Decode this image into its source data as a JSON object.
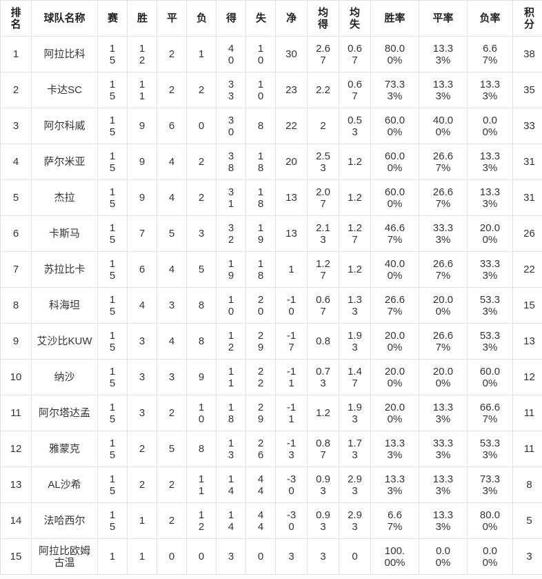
{
  "table": {
    "colors": {
      "background": "#ffffff",
      "border": "#e2e2e2",
      "text": "#333333",
      "header_text": "#222222"
    },
    "columns": [
      {
        "key": "rank",
        "label": "排名"
      },
      {
        "key": "team",
        "label": "球队名称"
      },
      {
        "key": "played",
        "label": "赛"
      },
      {
        "key": "wins",
        "label": "胜"
      },
      {
        "key": "draws",
        "label": "平"
      },
      {
        "key": "losses",
        "label": "负"
      },
      {
        "key": "goals_for",
        "label": "得"
      },
      {
        "key": "goals_against",
        "label": "失"
      },
      {
        "key": "goal_diff",
        "label": "净"
      },
      {
        "key": "avg_goals_for",
        "label": "均得"
      },
      {
        "key": "avg_goals_against",
        "label": "均失"
      },
      {
        "key": "win_rate",
        "label": "胜率"
      },
      {
        "key": "draw_rate",
        "label": "平率"
      },
      {
        "key": "loss_rate",
        "label": "负率"
      },
      {
        "key": "points",
        "label": "积分"
      }
    ],
    "rows": [
      {
        "rank": "1",
        "team": "阿拉比科",
        "played": "15",
        "wins": "12",
        "draws": "2",
        "losses": "1",
        "goals_for": "40",
        "goals_against": "10",
        "goal_diff": "30",
        "avg_goals_for": "2.67",
        "avg_goals_against": "0.67",
        "win_rate": "80.00%",
        "draw_rate": "13.33%",
        "loss_rate": "6.67%",
        "points": "38"
      },
      {
        "rank": "2",
        "team": "卡达SC",
        "played": "15",
        "wins": "11",
        "draws": "2",
        "losses": "2",
        "goals_for": "33",
        "goals_against": "10",
        "goal_diff": "23",
        "avg_goals_for": "2.2",
        "avg_goals_against": "0.67",
        "win_rate": "73.33%",
        "draw_rate": "13.33%",
        "loss_rate": "13.33%",
        "points": "35"
      },
      {
        "rank": "3",
        "team": "阿尔科威",
        "played": "15",
        "wins": "9",
        "draws": "6",
        "losses": "0",
        "goals_for": "30",
        "goals_against": "8",
        "goal_diff": "22",
        "avg_goals_for": "2",
        "avg_goals_against": "0.53",
        "win_rate": "60.00%",
        "draw_rate": "40.00%",
        "loss_rate": "0.00%",
        "points": "33"
      },
      {
        "rank": "4",
        "team": "萨尔米亚",
        "played": "15",
        "wins": "9",
        "draws": "4",
        "losses": "2",
        "goals_for": "38",
        "goals_against": "18",
        "goal_diff": "20",
        "avg_goals_for": "2.53",
        "avg_goals_against": "1.2",
        "win_rate": "60.00%",
        "draw_rate": "26.67%",
        "loss_rate": "13.33%",
        "points": "31"
      },
      {
        "rank": "5",
        "team": "杰拉",
        "played": "15",
        "wins": "9",
        "draws": "4",
        "losses": "2",
        "goals_for": "31",
        "goals_against": "18",
        "goal_diff": "13",
        "avg_goals_for": "2.07",
        "avg_goals_against": "1.2",
        "win_rate": "60.00%",
        "draw_rate": "26.67%",
        "loss_rate": "13.33%",
        "points": "31"
      },
      {
        "rank": "6",
        "team": "卡斯马",
        "played": "15",
        "wins": "7",
        "draws": "5",
        "losses": "3",
        "goals_for": "32",
        "goals_against": "19",
        "goal_diff": "13",
        "avg_goals_for": "2.13",
        "avg_goals_against": "1.27",
        "win_rate": "46.67%",
        "draw_rate": "33.33%",
        "loss_rate": "20.00%",
        "points": "26"
      },
      {
        "rank": "7",
        "team": "苏拉比卡",
        "played": "15",
        "wins": "6",
        "draws": "4",
        "losses": "5",
        "goals_for": "19",
        "goals_against": "18",
        "goal_diff": "1",
        "avg_goals_for": "1.27",
        "avg_goals_against": "1.2",
        "win_rate": "40.00%",
        "draw_rate": "26.67%",
        "loss_rate": "33.33%",
        "points": "22"
      },
      {
        "rank": "8",
        "team": "科海坦",
        "played": "15",
        "wins": "4",
        "draws": "3",
        "losses": "8",
        "goals_for": "10",
        "goals_against": "20",
        "goal_diff": "-10",
        "avg_goals_for": "0.67",
        "avg_goals_against": "1.33",
        "win_rate": "26.67%",
        "draw_rate": "20.00%",
        "loss_rate": "53.33%",
        "points": "15"
      },
      {
        "rank": "9",
        "team": "艾沙比KUW",
        "played": "15",
        "wins": "3",
        "draws": "4",
        "losses": "8",
        "goals_for": "12",
        "goals_against": "29",
        "goal_diff": "-17",
        "avg_goals_for": "0.8",
        "avg_goals_against": "1.93",
        "win_rate": "20.00%",
        "draw_rate": "26.67%",
        "loss_rate": "53.33%",
        "points": "13"
      },
      {
        "rank": "10",
        "team": "纳沙",
        "played": "15",
        "wins": "3",
        "draws": "3",
        "losses": "9",
        "goals_for": "11",
        "goals_against": "22",
        "goal_diff": "-11",
        "avg_goals_for": "0.73",
        "avg_goals_against": "1.47",
        "win_rate": "20.00%",
        "draw_rate": "20.00%",
        "loss_rate": "60.00%",
        "points": "12"
      },
      {
        "rank": "11",
        "team": "阿尔塔达孟",
        "played": "15",
        "wins": "3",
        "draws": "2",
        "losses": "10",
        "goals_for": "18",
        "goals_against": "29",
        "goal_diff": "-11",
        "avg_goals_for": "1.2",
        "avg_goals_against": "1.93",
        "win_rate": "20.00%",
        "draw_rate": "13.33%",
        "loss_rate": "66.67%",
        "points": "11"
      },
      {
        "rank": "12",
        "team": "雅蒙克",
        "played": "15",
        "wins": "2",
        "draws": "5",
        "losses": "8",
        "goals_for": "13",
        "goals_against": "26",
        "goal_diff": "-13",
        "avg_goals_for": "0.87",
        "avg_goals_against": "1.73",
        "win_rate": "13.33%",
        "draw_rate": "33.33%",
        "loss_rate": "53.33%",
        "points": "11"
      },
      {
        "rank": "13",
        "team": "AL沙希",
        "played": "15",
        "wins": "2",
        "draws": "2",
        "losses": "11",
        "goals_for": "14",
        "goals_against": "44",
        "goal_diff": "-30",
        "avg_goals_for": "0.93",
        "avg_goals_against": "2.93",
        "win_rate": "13.33%",
        "draw_rate": "13.33%",
        "loss_rate": "73.33%",
        "points": "8"
      },
      {
        "rank": "14",
        "team": "法哈西尔",
        "played": "15",
        "wins": "1",
        "draws": "2",
        "losses": "12",
        "goals_for": "14",
        "goals_against": "44",
        "goal_diff": "-30",
        "avg_goals_for": "0.93",
        "avg_goals_against": "2.93",
        "win_rate": "6.67%",
        "draw_rate": "13.33%",
        "loss_rate": "80.00%",
        "points": "5"
      },
      {
        "rank": "15",
        "team": "阿拉比欧姆古温",
        "played": "1",
        "wins": "1",
        "draws": "0",
        "losses": "0",
        "goals_for": "3",
        "goals_against": "0",
        "goal_diff": "3",
        "avg_goals_for": "3",
        "avg_goals_against": "0",
        "win_rate": "100.00%",
        "draw_rate": "0.00%",
        "loss_rate": "0.00%",
        "points": "3"
      }
    ]
  }
}
